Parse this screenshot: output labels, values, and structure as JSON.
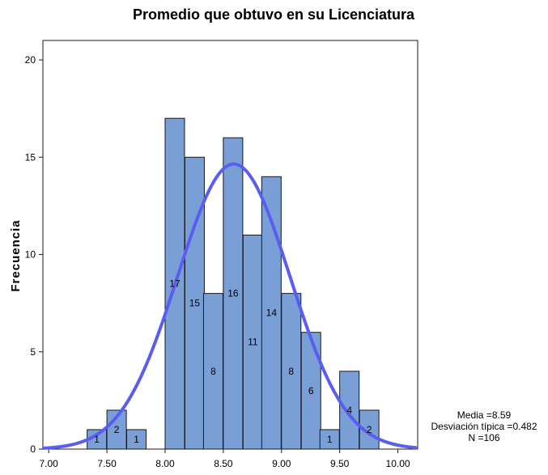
{
  "chart_data": {
    "type": "bar",
    "title": "Promedio que obtuvo en su Licenciatura",
    "xlabel": "",
    "ylabel": "Frecuencia",
    "xlim": [
      6.95,
      10.17
    ],
    "ylim": [
      0,
      21
    ],
    "x_ticks": [
      "7.00",
      "7.50",
      "8.00",
      "8.50",
      "9.00",
      "9.50",
      "10.00"
    ],
    "y_ticks": [
      "0",
      "5",
      "10",
      "15",
      "20"
    ],
    "bin_width": 0.167,
    "bins": [
      {
        "start": 7.33,
        "count": 1
      },
      {
        "start": 7.5,
        "count": 2
      },
      {
        "start": 7.67,
        "count": 1
      },
      {
        "start": 8.0,
        "count": 17
      },
      {
        "start": 8.17,
        "count": 15
      },
      {
        "start": 8.33,
        "count": 8
      },
      {
        "start": 8.5,
        "count": 16
      },
      {
        "start": 8.67,
        "count": 11
      },
      {
        "start": 8.83,
        "count": 14
      },
      {
        "start": 9.0,
        "count": 8
      },
      {
        "start": 9.17,
        "count": 6
      },
      {
        "start": 9.33,
        "count": 1
      },
      {
        "start": 9.5,
        "count": 4
      },
      {
        "start": 9.67,
        "count": 2
      }
    ],
    "normal_curve": {
      "mean": 8.59,
      "sd": 0.482,
      "n": 106
    },
    "colors": {
      "bar": "#799fd6",
      "curve": "#5a5ef0"
    },
    "stats_text": {
      "media": "Media =8.59",
      "desv": "Desviación típica =0.482",
      "n": "N =106"
    }
  }
}
